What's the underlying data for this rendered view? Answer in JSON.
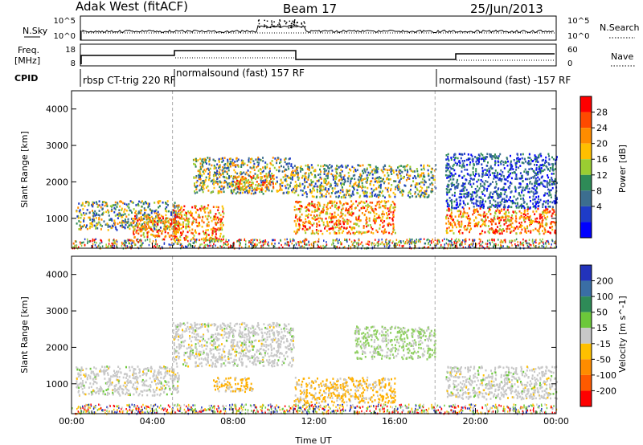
{
  "header": {
    "station": "Adak West (fitACF)",
    "beam": "Beam 17",
    "date": "25/Jun/2013"
  },
  "top_panels": {
    "nsky_label": "N.Sky",
    "nsky_ticks": [
      "10^5",
      "10^0"
    ],
    "nsearch_label": "N.Search",
    "nsearch_ticks": [
      "10^5",
      "10^0"
    ],
    "freq_label_1": "Freq.",
    "freq_label_2": "[MHz]",
    "freq_ticks": [
      "18",
      "8"
    ],
    "nave_label": "Nave",
    "nave_ticks": [
      "60",
      "0"
    ],
    "cpid_label": "CPID",
    "cpid_segments": [
      {
        "text": "rbsp CT-trig 220 RF",
        "start_hour": 0
      },
      {
        "text": "normalsound (fast) 157 RF",
        "start_hour": 5
      },
      {
        "text": "normalsound (fast) -157 RF",
        "start_hour": 18
      }
    ]
  },
  "colorbar_power": {
    "label": "Power [dB]",
    "ticks": [
      "28",
      "24",
      "20",
      "16",
      "12",
      "8",
      "4"
    ],
    "colors": [
      "#ff0000",
      "#ff4a00",
      "#ff8c00",
      "#ffbf00",
      "#9acd32",
      "#2e8b57",
      "#3c6e8f",
      "#1e3cc8",
      "#0000ff"
    ]
  },
  "colorbar_velocity": {
    "label": "Velocity [m s^-1]",
    "ticks": [
      "200",
      "100",
      "50",
      "15",
      "-15",
      "-50",
      "-100",
      "-200"
    ],
    "colors": [
      "#2233bb",
      "#3a6ea5",
      "#2e8b57",
      "#6cc83a",
      "#c8c8c8",
      "#ffc000",
      "#ff8c00",
      "#ff5a00",
      "#ff0000"
    ]
  },
  "chart_data": [
    {
      "type": "heatmap",
      "title": "",
      "xlabel": "",
      "ylabel": "Slant Range [km]",
      "xlim": [
        0,
        24
      ],
      "ylim": [
        180,
        4500
      ],
      "yticks": [
        1000,
        2000,
        3000,
        4000
      ],
      "x_tick_labels": [],
      "cpid_change_hours": [
        5,
        18
      ],
      "scatter_bands": [
        {
          "t0": 0.2,
          "t1": 5.3,
          "r0": 700,
          "r1": 1500,
          "level": "mid"
        },
        {
          "t0": 3.0,
          "t1": 5.3,
          "r0": 500,
          "r1": 1100,
          "level": "high"
        },
        {
          "t0": 5.0,
          "t1": 7.5,
          "r0": 400,
          "r1": 1400,
          "level": "high"
        },
        {
          "t0": 6.0,
          "t1": 11.0,
          "r0": 1700,
          "r1": 2700,
          "level": "mid"
        },
        {
          "t0": 8.0,
          "t1": 10.0,
          "r0": 1800,
          "r1": 2200,
          "level": "high"
        },
        {
          "t0": 11.0,
          "t1": 16.0,
          "r0": 600,
          "r1": 1500,
          "level": "high"
        },
        {
          "t0": 11.0,
          "t1": 18.0,
          "r0": 1600,
          "r1": 2500,
          "level": "mid"
        },
        {
          "t0": 18.5,
          "t1": 24.0,
          "r0": 600,
          "r1": 1300,
          "level": "high"
        },
        {
          "t0": 18.5,
          "t1": 24.0,
          "r0": 1300,
          "r1": 2800,
          "level": "low"
        }
      ]
    },
    {
      "type": "heatmap",
      "title": "",
      "xlabel": "Time UT",
      "ylabel": "Slant Range [km]",
      "xlim": [
        0,
        24
      ],
      "ylim": [
        180,
        4500
      ],
      "yticks": [
        1000,
        2000,
        3000,
        4000
      ],
      "x_tick_labels": [
        "00:00",
        "04:00",
        "08:00",
        "12:00",
        "16:00",
        "20:00",
        "00:00"
      ],
      "cpid_change_hours": [
        5,
        18
      ],
      "scatter_bands": [
        {
          "t0": 0.2,
          "t1": 5.3,
          "r0": 700,
          "r1": 1500,
          "level": "gray"
        },
        {
          "t0": 5.0,
          "t1": 11.0,
          "r0": 1500,
          "r1": 2700,
          "level": "gray"
        },
        {
          "t0": 7.0,
          "t1": 9.0,
          "r0": 800,
          "r1": 1200,
          "level": "orange"
        },
        {
          "t0": 11.0,
          "t1": 16.0,
          "r0": 500,
          "r1": 1200,
          "level": "orange"
        },
        {
          "t0": 14.0,
          "t1": 18.0,
          "r0": 1700,
          "r1": 2600,
          "level": "green"
        },
        {
          "t0": 18.5,
          "t1": 24.0,
          "r0": 600,
          "r1": 1500,
          "level": "gray"
        }
      ]
    }
  ]
}
